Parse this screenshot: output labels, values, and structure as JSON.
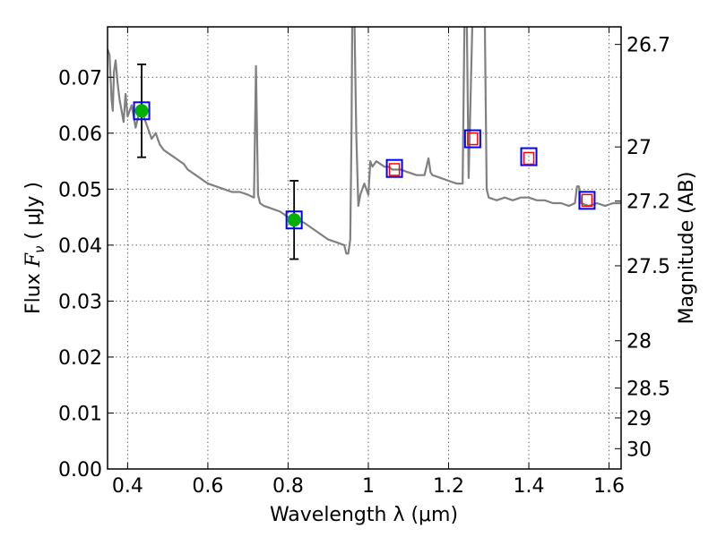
{
  "chart_data": {
    "type": "line",
    "xlabel": "Wavelength  λ (μm)",
    "ylabel": "Flux  Fν  ( μJy )",
    "ylabel_parts": {
      "prefix": "Flux  ",
      "symbol": "F",
      "subscript": "ν",
      "unit": " ( μJy )"
    },
    "y2label": "Magnitude (AB)",
    "xlim": [
      0.35,
      1.63
    ],
    "ylim": [
      0.0,
      0.079
    ],
    "grid": true,
    "x_ticks": [
      0.4,
      0.6,
      0.8,
      1.0,
      1.2,
      1.4,
      1.6
    ],
    "x_tick_labels": [
      "0.4",
      "0.6",
      "0.8",
      "1",
      "1.2",
      "1.4",
      "1.6"
    ],
    "y_ticks": [
      0.0,
      0.01,
      0.02,
      0.03,
      0.04,
      0.05,
      0.06,
      0.07
    ],
    "y_tick_labels": [
      "0.00",
      "0.01",
      "0.02",
      "0.03",
      "0.04",
      "0.05",
      "0.06",
      "0.07"
    ],
    "y2_ticks": [
      26.7,
      27,
      27.2,
      27.5,
      28,
      28.5,
      29,
      30
    ],
    "y2_tick_labels": [
      "26.7",
      "27",
      "27.2",
      "27.5",
      "28",
      "28.5",
      "29",
      "30"
    ],
    "colors": {
      "spectrum": "#808080",
      "detection": "#00b000",
      "model_box": "#0000ff",
      "limit_box": "#ff0000",
      "errorbar": "#000000"
    },
    "series": [
      {
        "kind": "spectrum",
        "x": [
          0.35,
          0.355,
          0.36,
          0.363,
          0.366,
          0.37,
          0.375,
          0.38,
          0.385,
          0.39,
          0.395,
          0.4,
          0.41,
          0.42,
          0.43,
          0.44,
          0.45,
          0.46,
          0.47,
          0.48,
          0.49,
          0.5,
          0.51,
          0.52,
          0.53,
          0.54,
          0.55,
          0.56,
          0.57,
          0.58,
          0.59,
          0.6,
          0.62,
          0.64,
          0.66,
          0.68,
          0.7,
          0.715,
          0.72,
          0.725,
          0.73,
          0.74,
          0.76,
          0.78,
          0.8,
          0.82,
          0.84,
          0.86,
          0.88,
          0.9,
          0.92,
          0.94,
          0.945,
          0.95,
          0.955,
          0.958,
          0.96,
          0.965,
          0.97,
          0.975,
          0.98,
          0.99,
          1.0,
          1.005,
          1.01,
          1.02,
          1.03,
          1.04,
          1.05,
          1.06,
          1.08,
          1.1,
          1.12,
          1.14,
          1.15,
          1.155,
          1.16,
          1.18,
          1.2,
          1.22,
          1.235,
          1.24,
          1.245,
          1.25,
          1.26,
          1.27,
          1.28,
          1.285,
          1.29,
          1.295,
          1.3,
          1.32,
          1.34,
          1.36,
          1.38,
          1.4,
          1.42,
          1.44,
          1.46,
          1.48,
          1.5,
          1.515,
          1.52,
          1.525,
          1.53,
          1.55,
          1.57,
          1.59,
          1.61,
          1.63
        ],
        "y": [
          0.075,
          0.074,
          0.066,
          0.064,
          0.071,
          0.073,
          0.069,
          0.066,
          0.064,
          0.062,
          0.067,
          0.063,
          0.065,
          0.061,
          0.064,
          0.063,
          0.061,
          0.059,
          0.06,
          0.058,
          0.057,
          0.0565,
          0.056,
          0.0555,
          0.055,
          0.0545,
          0.0535,
          0.053,
          0.0525,
          0.052,
          0.0515,
          0.051,
          0.0505,
          0.05,
          0.0495,
          0.0495,
          0.049,
          0.0485,
          0.072,
          0.049,
          0.0475,
          0.047,
          0.0465,
          0.046,
          0.045,
          0.0445,
          0.044,
          0.043,
          0.042,
          0.041,
          0.0405,
          0.04,
          0.0385,
          0.0385,
          0.041,
          0.06,
          0.082,
          0.082,
          0.06,
          0.047,
          0.049,
          0.051,
          0.049,
          0.055,
          0.054,
          0.055,
          0.0545,
          0.054,
          0.054,
          0.0535,
          0.0535,
          0.053,
          0.0525,
          0.0525,
          0.0555,
          0.053,
          0.0525,
          0.052,
          0.0515,
          0.051,
          0.051,
          0.082,
          0.082,
          0.052,
          0.082,
          0.082,
          0.082,
          0.082,
          0.082,
          0.05,
          0.0485,
          0.048,
          0.0485,
          0.048,
          0.0485,
          0.0485,
          0.048,
          0.048,
          0.0475,
          0.0475,
          0.047,
          0.0475,
          0.0505,
          0.0505,
          0.0475,
          0.047,
          0.0475,
          0.047,
          0.0475,
          0.0475
        ]
      },
      {
        "kind": "model_photometry",
        "x": [
          0.435,
          0.815,
          1.065,
          1.26,
          1.4,
          1.545
        ],
        "y": [
          0.064,
          0.0445,
          0.0537,
          0.059,
          0.0558,
          0.048
        ]
      },
      {
        "kind": "detections",
        "x": [
          0.435,
          0.815
        ],
        "y": [
          0.064,
          0.0445
        ],
        "yerr": [
          0.0083,
          0.007
        ]
      },
      {
        "kind": "limits",
        "x": [
          1.065,
          1.26,
          1.4,
          1.545
        ],
        "y": [
          0.0535,
          0.059,
          0.0555,
          0.048
        ]
      }
    ]
  }
}
